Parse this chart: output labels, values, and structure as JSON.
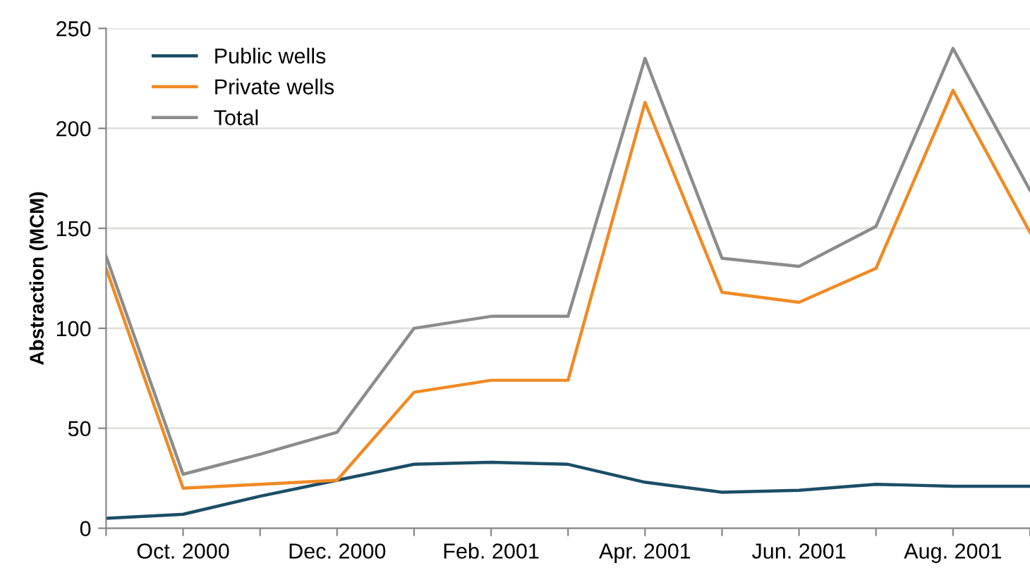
{
  "chart_data": {
    "type": "line",
    "ylabel": "Abstraction (MCM)",
    "categories": [
      null,
      "Oct. 2000",
      null,
      "Dec. 2000",
      null,
      "Feb. 2001",
      null,
      "Apr. 2001",
      null,
      "Jun. 2001",
      null,
      "Aug. 2001",
      null
    ],
    "series": [
      {
        "name": "Public wells",
        "color": "#1a4e66",
        "values": [
          5,
          7,
          16,
          24,
          32,
          33,
          32,
          23,
          18,
          19,
          22,
          21,
          21
        ]
      },
      {
        "name": "Private wells",
        "color": "#f08a24",
        "values": [
          130,
          20,
          22,
          24,
          68,
          74,
          74,
          213,
          118,
          113,
          130,
          219,
          148
        ]
      },
      {
        "name": "Total",
        "color": "#8c8c8c",
        "values": [
          136,
          27,
          37,
          48,
          100,
          106,
          106,
          235,
          135,
          131,
          151,
          240,
          169
        ]
      }
    ],
    "ylim": [
      0,
      250
    ],
    "yticks": [
      0,
      50,
      100,
      150,
      200,
      250
    ],
    "grid": "y",
    "legend": "top left",
    "marker": "none",
    "line_style": "solid"
  }
}
